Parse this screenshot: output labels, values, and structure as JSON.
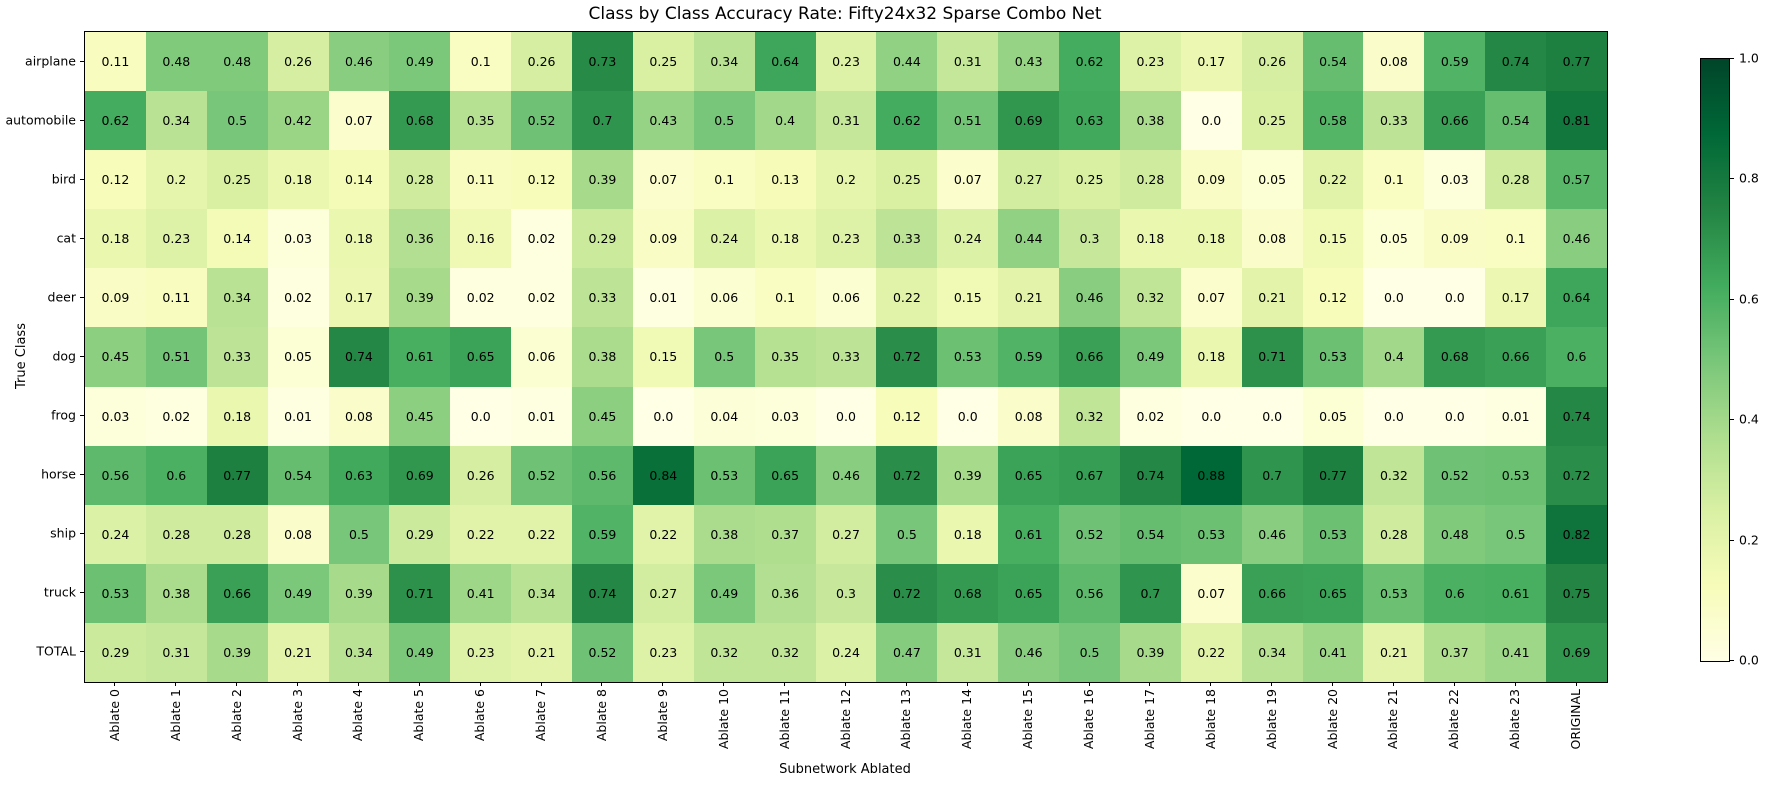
{
  "chart_data": {
    "type": "heatmap",
    "title": "Class by Class Accuracy Rate: Fifty24x32 Sparse Combo Net",
    "xlabel": "Subnetwork Ablated",
    "ylabel": "True Class",
    "rows": [
      "airplane",
      "automobile",
      "bird",
      "cat",
      "deer",
      "dog",
      "frog",
      "horse",
      "ship",
      "truck",
      "TOTAL"
    ],
    "columns": [
      "Ablate 0",
      "Ablate 1",
      "Ablate 2",
      "Ablate 3",
      "Ablate 4",
      "Ablate 5",
      "Ablate 6",
      "Ablate 7",
      "Ablate 8",
      "Ablate 9",
      "Ablate 10",
      "Ablate 11",
      "Ablate 12",
      "Ablate 13",
      "Ablate 14",
      "Ablate 15",
      "Ablate 16",
      "Ablate 17",
      "Ablate 18",
      "Ablate 19",
      "Ablate 20",
      "Ablate 21",
      "Ablate 22",
      "Ablate 23",
      "ORIGINAL"
    ],
    "values": [
      [
        0.11,
        0.48,
        0.48,
        0.26,
        0.46,
        0.49,
        0.1,
        0.26,
        0.73,
        0.25,
        0.34,
        0.64,
        0.23,
        0.44,
        0.31,
        0.43,
        0.62,
        0.23,
        0.17,
        0.26,
        0.54,
        0.08,
        0.59,
        0.74,
        0.77
      ],
      [
        0.62,
        0.34,
        0.5,
        0.42,
        0.07,
        0.68,
        0.35,
        0.52,
        0.7,
        0.43,
        0.5,
        0.4,
        0.31,
        0.62,
        0.51,
        0.69,
        0.63,
        0.38,
        0.0,
        0.25,
        0.58,
        0.33,
        0.66,
        0.54,
        0.81
      ],
      [
        0.12,
        0.2,
        0.25,
        0.18,
        0.14,
        0.28,
        0.11,
        0.12,
        0.39,
        0.07,
        0.1,
        0.13,
        0.2,
        0.25,
        0.07,
        0.27,
        0.25,
        0.28,
        0.09,
        0.05,
        0.22,
        0.1,
        0.03,
        0.28,
        0.57
      ],
      [
        0.18,
        0.23,
        0.14,
        0.03,
        0.18,
        0.36,
        0.16,
        0.02,
        0.29,
        0.09,
        0.24,
        0.18,
        0.23,
        0.33,
        0.24,
        0.44,
        0.3,
        0.18,
        0.18,
        0.08,
        0.15,
        0.05,
        0.09,
        0.1,
        0.46
      ],
      [
        0.09,
        0.11,
        0.34,
        0.02,
        0.17,
        0.39,
        0.02,
        0.02,
        0.33,
        0.01,
        0.06,
        0.1,
        0.06,
        0.22,
        0.15,
        0.21,
        0.46,
        0.32,
        0.07,
        0.21,
        0.12,
        0.0,
        0.0,
        0.17,
        0.64
      ],
      [
        0.45,
        0.51,
        0.33,
        0.05,
        0.74,
        0.61,
        0.65,
        0.06,
        0.38,
        0.15,
        0.5,
        0.35,
        0.33,
        0.72,
        0.53,
        0.59,
        0.66,
        0.49,
        0.18,
        0.71,
        0.53,
        0.4,
        0.68,
        0.66,
        0.6
      ],
      [
        0.03,
        0.02,
        0.18,
        0.01,
        0.08,
        0.45,
        0.0,
        0.01,
        0.45,
        0.0,
        0.04,
        0.03,
        0.0,
        0.12,
        0.0,
        0.08,
        0.32,
        0.02,
        0.0,
        0.0,
        0.05,
        0.0,
        0.0,
        0.01,
        0.74
      ],
      [
        0.56,
        0.6,
        0.77,
        0.54,
        0.63,
        0.69,
        0.26,
        0.52,
        0.56,
        0.84,
        0.53,
        0.65,
        0.46,
        0.72,
        0.39,
        0.65,
        0.67,
        0.74,
        0.88,
        0.7,
        0.77,
        0.32,
        0.52,
        0.53,
        0.72
      ],
      [
        0.24,
        0.28,
        0.28,
        0.08,
        0.5,
        0.29,
        0.22,
        0.22,
        0.59,
        0.22,
        0.38,
        0.37,
        0.27,
        0.5,
        0.18,
        0.61,
        0.52,
        0.54,
        0.53,
        0.46,
        0.53,
        0.28,
        0.48,
        0.5,
        0.82
      ],
      [
        0.53,
        0.38,
        0.66,
        0.49,
        0.39,
        0.71,
        0.41,
        0.34,
        0.74,
        0.27,
        0.49,
        0.36,
        0.3,
        0.72,
        0.68,
        0.65,
        0.56,
        0.7,
        0.07,
        0.66,
        0.65,
        0.53,
        0.6,
        0.61,
        0.75
      ],
      [
        0.29,
        0.31,
        0.39,
        0.21,
        0.34,
        0.49,
        0.23,
        0.21,
        0.52,
        0.23,
        0.32,
        0.32,
        0.24,
        0.47,
        0.31,
        0.46,
        0.5,
        0.39,
        0.22,
        0.34,
        0.41,
        0.21,
        0.37,
        0.41,
        0.69
      ]
    ],
    "vmin": 0.0,
    "vmax": 1.0,
    "grid": false,
    "legend_position": "right-colorbar",
    "colorbar_ticks": [
      "1.0",
      "0.8",
      "0.6",
      "0.4",
      "0.2",
      "0.0"
    ],
    "annotation_color": "#000000",
    "colormap": "YlGn",
    "colormap_stops": [
      {
        "pos": 0.0,
        "color": "#ffffe5"
      },
      {
        "pos": 0.125,
        "color": "#f7fcb9"
      },
      {
        "pos": 0.25,
        "color": "#d9f0a3"
      },
      {
        "pos": 0.375,
        "color": "#addd8e"
      },
      {
        "pos": 0.5,
        "color": "#78c679"
      },
      {
        "pos": 0.625,
        "color": "#41ab5d"
      },
      {
        "pos": 0.75,
        "color": "#238443"
      },
      {
        "pos": 0.875,
        "color": "#006837"
      },
      {
        "pos": 1.0,
        "color": "#004529"
      }
    ]
  }
}
